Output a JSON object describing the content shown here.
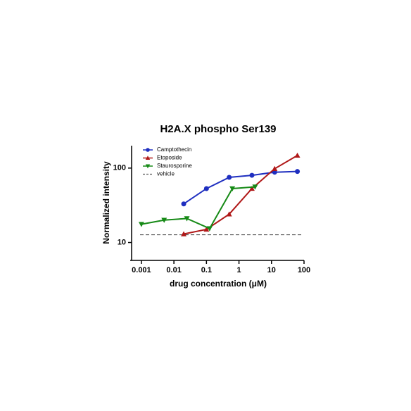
{
  "chart_data": {
    "type": "line",
    "title": "H2A.X phospho Ser139",
    "xlabel": "drug concentration (μM)",
    "ylabel": "Normalized intensity",
    "xscale": "log",
    "yscale": "log",
    "xlim": [
      0.0005,
      100
    ],
    "ylim": [
      6,
      200
    ],
    "xticks": [
      0.001,
      0.01,
      0.1,
      1,
      10,
      100
    ],
    "yticks": [
      10,
      100
    ],
    "legend": "upper left",
    "series": [
      {
        "name": "Camptothecin",
        "color": "#1f2fc0",
        "marker": "circle",
        "x": [
          0.02,
          0.1,
          0.5,
          2.5,
          12.5,
          62.5
        ],
        "values": [
          33,
          53,
          75,
          80,
          88,
          90
        ]
      },
      {
        "name": "Etoposide",
        "color": "#b01818",
        "marker": "triangle-up",
        "x": [
          0.02,
          0.1,
          0.5,
          2.5,
          12.5,
          62.5
        ],
        "values": [
          13,
          15,
          24,
          53,
          98,
          148
        ]
      },
      {
        "name": "Staurosporine",
        "color": "#168a16",
        "marker": "triangle-down",
        "x": [
          0.001,
          0.005,
          0.025,
          0.125,
          0.625,
          3.125
        ],
        "values": [
          17.6,
          20,
          21,
          15.4,
          53,
          56
        ]
      }
    ],
    "reference_line": {
      "name": "vehicle",
      "value": 12.7,
      "color": "#555555"
    }
  }
}
